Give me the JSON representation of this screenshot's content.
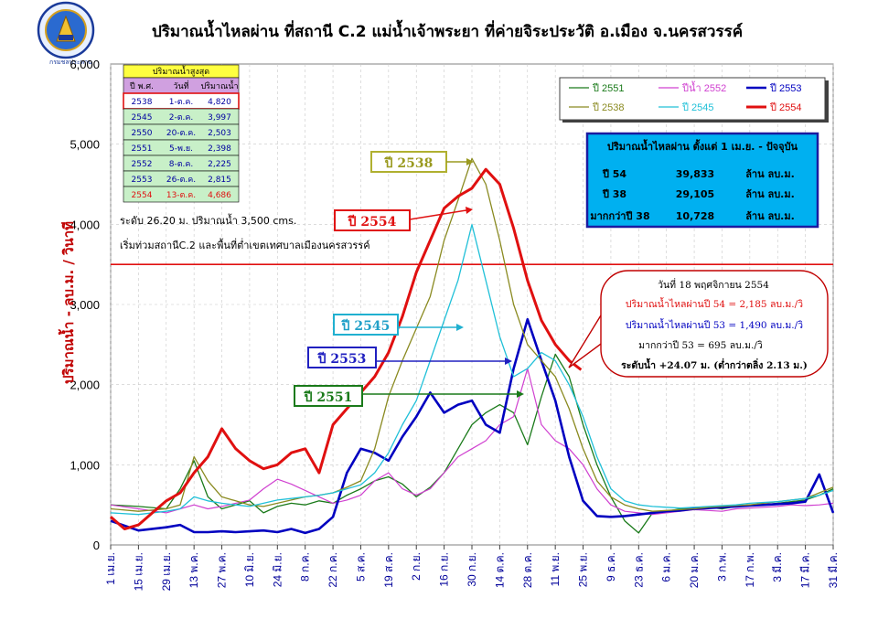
{
  "title": "ปริมาณน้ำไหลผ่าน ที่สถานี C.2 แม่น้ำเจ้าพระยา  ที่ค่ายจิระประวัติ  อ.เมือง  จ.นครสวรรค์",
  "logo_text": "กรมชลประทาน",
  "colors": {
    "y2551": "#1a7a1a",
    "y2552": "#d040d0",
    "y2553": "#0000c0",
    "y2538": "#8a8a20",
    "y2545": "#20c0d8",
    "y2554": "#e01010",
    "level": "#e01010",
    "axis_text": "#00009a"
  },
  "max_table": {
    "title": "ปริมาณน้ำสูงสุด",
    "headers": [
      "ปี พ.ศ.",
      "วันที่",
      "ปริมาณน้ำ"
    ],
    "rows": [
      [
        "2538",
        "1-ต.ค.",
        "4,820"
      ],
      [
        "2545",
        "2-ต.ค.",
        "3,997"
      ],
      [
        "2550",
        "20-ต.ค.",
        "2,503"
      ],
      [
        "2551",
        "5-พ.ย.",
        "2,398"
      ],
      [
        "2552",
        "8-ต.ค.",
        "2,225"
      ],
      [
        "2553",
        "26-ต.ค.",
        "2,815"
      ],
      [
        "2554",
        "13-ต.ค.",
        "4,686"
      ]
    ]
  },
  "legend": [
    "ปี 2551",
    "ปีน้ำ 2552",
    "ปี 2553",
    "ปี 2538",
    "ปี 2545",
    "ปี 2554"
  ],
  "summary": {
    "title": "ปริมาณน้ำไหลผ่าน ตั้งแต่ 1 เม.ย. - ปัจจุบัน",
    "rows": [
      [
        "ปี 54",
        "39,833",
        "ล้าน ลบ.ม."
      ],
      [
        "ปี 38",
        "29,105",
        "ล้าน ลบ.ม."
      ],
      [
        "มากกว่าปี 38",
        "10,728",
        "ล้าน ลบ.ม."
      ]
    ]
  },
  "level_note_1": "ระดับ 26.20 ม. ปริมาณน้ำ 3,500 cms.",
  "level_note_2": "เริ่มท่วมสถานีC.2 และพื้นที่ต่ำเขตเทศบาลเมืองนครสวรรค์",
  "callout": {
    "line1": "วันที่ 18  พฤศจิกายน   2554",
    "line2": "ปริมาณน้ำไหลผ่านปี 54 = 2,185  ลบ.ม./วิ",
    "line3": "ปริมาณน้ำไหลผ่านปี 53 = 1,490  ลบ.ม./วิ",
    "line4": "มากกว่าปี 53 =  695 ลบ.ม./วิ",
    "line5": "ระดับน้ำ +24.07 ม. (ต่ำกว่าตลิ่ง  2.13 ม.)"
  },
  "series_labels": [
    "ปี 2538",
    "ปี 2554",
    "ปี 2545",
    "ปี 2553",
    "ปี 2551"
  ],
  "chart_data": {
    "type": "line",
    "title": "ปริมาณน้ำไหลผ่าน ที่สถานี C.2 แม่น้ำเจ้าพระยา  ที่ค่ายจิระประวัติ  อ.เมือง  จ.นครสวรรค์",
    "ylabel": "ปริมาณน้ำ  -  ลบ.ม. / วินาที",
    "xlabel": "",
    "ylim": [
      0,
      6000
    ],
    "yticks": [
      "0",
      "1,000",
      "2,000",
      "3,000",
      "4,000",
      "5,000",
      "6,000"
    ],
    "x_tick_labels": [
      "1 เม.ย.",
      "15 เม.ย.",
      "29 เม.ย.",
      "13 พ.ค.",
      "27 พ.ค.",
      "10 มิ.ย.",
      "24 มิ.ย.",
      "8 ก.ค.",
      "22 ก.ค.",
      "5 ส.ค.",
      "19 ส.ค.",
      "2 ก.ย.",
      "16 ก.ย.",
      "30 ก.ย.",
      "14 ต.ค.",
      "28 ต.ค.",
      "11 พ.ย.",
      "25 พ.ย.",
      "9 ธ.ค.",
      "23 ธ.ค.",
      "6 ม.ค.",
      "20 ม.ค.",
      "3 ก.พ.",
      "17 ก.พ.",
      "3 มี.ค.",
      "17 มี.ค.",
      "31 มี.ค."
    ],
    "x_unit": "days since 1 เม.ย.",
    "reference_line": 3500,
    "grid": true,
    "series": [
      {
        "name": "ปี 2551",
        "x": [
          0,
          14,
          28,
          35,
          42,
          49,
          56,
          63,
          70,
          77,
          84,
          91,
          98,
          105,
          112,
          119,
          126,
          133,
          140,
          147,
          154,
          161,
          168,
          175,
          182,
          189,
          196,
          203,
          210,
          217,
          224,
          231,
          238,
          245,
          252,
          259,
          266,
          273,
          280,
          287,
          294,
          301,
          308,
          315,
          322,
          329,
          336,
          343,
          350,
          357,
          364
        ],
        "values": [
          500,
          480,
          450,
          700,
          1050,
          600,
          450,
          500,
          550,
          400,
          480,
          520,
          500,
          550,
          520,
          620,
          700,
          800,
          850,
          760,
          600,
          720,
          900,
          1200,
          1500,
          1650,
          1750,
          1650,
          1250,
          1850,
          2380,
          2100,
          1500,
          1000,
          600,
          300,
          150,
          400,
          420,
          450,
          460,
          470,
          450,
          480,
          500,
          500,
          520,
          540,
          560,
          620,
          700
        ]
      },
      {
        "name": "ปีน้ำ 2552",
        "x": [
          0,
          14,
          28,
          35,
          42,
          49,
          56,
          63,
          70,
          77,
          84,
          91,
          98,
          105,
          112,
          119,
          126,
          133,
          140,
          147,
          154,
          161,
          168,
          175,
          182,
          189,
          196,
          203,
          210,
          217,
          224,
          231,
          238,
          245,
          252,
          259,
          266,
          273,
          280,
          287,
          294,
          301,
          308,
          315,
          322,
          329,
          336,
          343,
          350,
          357,
          364
        ],
        "values": [
          500,
          450,
          400,
          450,
          500,
          450,
          480,
          520,
          560,
          700,
          820,
          760,
          680,
          600,
          520,
          560,
          620,
          800,
          900,
          700,
          620,
          700,
          900,
          1100,
          1200,
          1300,
          1500,
          1600,
          2200,
          1500,
          1300,
          1200,
          1000,
          700,
          500,
          420,
          400,
          380,
          400,
          420,
          440,
          430,
          420,
          450,
          460,
          470,
          480,
          500,
          490,
          500,
          520
        ]
      },
      {
        "name": "ปี 2553",
        "x": [
          0,
          14,
          28,
          35,
          42,
          49,
          56,
          63,
          70,
          77,
          84,
          91,
          98,
          105,
          112,
          119,
          126,
          133,
          140,
          147,
          154,
          161,
          168,
          175,
          182,
          189,
          196,
          203,
          210,
          217,
          224,
          231,
          238,
          245,
          252,
          259,
          266,
          273,
          280,
          287,
          294,
          301,
          308,
          315,
          322,
          329,
          336,
          343,
          350,
          357,
          364
        ],
        "values": [
          300,
          180,
          220,
          250,
          160,
          160,
          170,
          160,
          170,
          180,
          160,
          200,
          150,
          200,
          350,
          900,
          1200,
          1150,
          1050,
          1350,
          1600,
          1900,
          1650,
          1750,
          1800,
          1500,
          1400,
          2200,
          2815,
          2300,
          1800,
          1100,
          550,
          360,
          350,
          360,
          380,
          400,
          420,
          430,
          450,
          460,
          470,
          480,
          490,
          500,
          510,
          520,
          540,
          880,
          400
        ]
      },
      {
        "name": "ปี 2538",
        "x": [
          0,
          14,
          28,
          35,
          42,
          49,
          56,
          63,
          70,
          77,
          84,
          91,
          98,
          105,
          112,
          119,
          126,
          133,
          140,
          147,
          154,
          161,
          168,
          175,
          182,
          189,
          196,
          203,
          210,
          217,
          224,
          231,
          238,
          245,
          252,
          259,
          266,
          273,
          280,
          287,
          294,
          301,
          308,
          315,
          322,
          329,
          336,
          343,
          350,
          357,
          364
        ],
        "values": [
          450,
          420,
          450,
          500,
          1100,
          800,
          600,
          550,
          500,
          480,
          520,
          560,
          600,
          620,
          650,
          720,
          800,
          1200,
          1850,
          2300,
          2700,
          3100,
          3800,
          4300,
          4820,
          4500,
          3800,
          3000,
          2500,
          2300,
          2100,
          1700,
          1200,
          800,
          600,
          500,
          450,
          420,
          430,
          440,
          450,
          470,
          480,
          490,
          500,
          520,
          540,
          560,
          580,
          650,
          720
        ]
      },
      {
        "name": "ปี 2545",
        "x": [
          0,
          14,
          28,
          35,
          42,
          49,
          56,
          63,
          70,
          77,
          84,
          91,
          98,
          105,
          112,
          119,
          126,
          133,
          140,
          147,
          154,
          161,
          168,
          175,
          182,
          189,
          196,
          203,
          210,
          217,
          224,
          231,
          238,
          245,
          252,
          259,
          266,
          273,
          280,
          287,
          294,
          301,
          308,
          315,
          322,
          329,
          336,
          343,
          350,
          357,
          364
        ],
        "values": [
          400,
          380,
          420,
          450,
          600,
          550,
          520,
          500,
          480,
          520,
          560,
          580,
          600,
          620,
          650,
          700,
          750,
          900,
          1150,
          1500,
          1800,
          2300,
          2800,
          3300,
          3997,
          3300,
          2600,
          2100,
          2200,
          2400,
          2300,
          2000,
          1600,
          1100,
          700,
          550,
          500,
          480,
          470,
          460,
          470,
          480,
          490,
          500,
          520,
          530,
          540,
          560,
          580,
          620,
          680
        ]
      },
      {
        "name": "ปี 2554",
        "x": [
          0,
          7,
          14,
          21,
          28,
          35,
          42,
          49,
          56,
          63,
          70,
          77,
          84,
          91,
          98,
          105,
          112,
          119,
          126,
          133,
          140,
          147,
          154,
          161,
          168,
          175,
          182,
          189,
          196,
          203,
          210,
          217,
          224,
          231,
          237
        ],
        "values": [
          350,
          200,
          250,
          400,
          550,
          650,
          900,
          1100,
          1450,
          1200,
          1050,
          950,
          1000,
          1150,
          1200,
          900,
          1500,
          1700,
          1900,
          2100,
          2400,
          2850,
          3400,
          3800,
          4200,
          4350,
          4450,
          4686,
          4500,
          3950,
          3300,
          2800,
          2500,
          2300,
          2185
        ]
      }
    ]
  }
}
